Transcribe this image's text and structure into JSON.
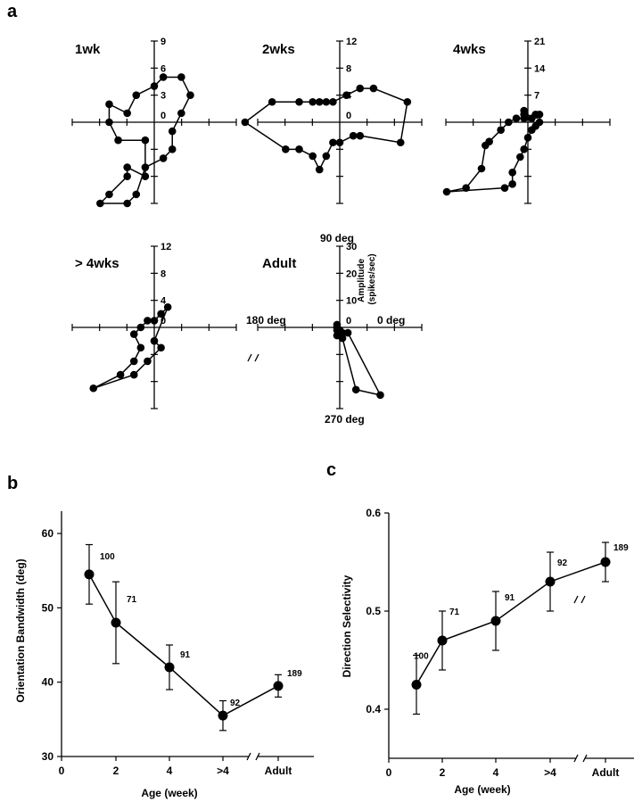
{
  "panel_labels": {
    "a": "a",
    "b": "b",
    "c": "c"
  },
  "chart_data": [
    {
      "type": "scatter",
      "subtype": "polar-direction-tuning",
      "title": "1wk",
      "angle_labels": [
        "",
        "",
        "",
        ""
      ],
      "radial_ticks": [
        3,
        6,
        9
      ],
      "zero_label": "0",
      "points": [
        [
          -6,
          -9
        ],
        [
          -5,
          -8
        ],
        [
          -3,
          -6
        ],
        [
          -3,
          -5
        ],
        [
          -1,
          -6
        ],
        [
          -1,
          -2
        ],
        [
          -4,
          -2
        ],
        [
          -5,
          0
        ],
        [
          -5,
          2
        ],
        [
          -3,
          1
        ],
        [
          -2,
          3
        ],
        [
          0,
          4
        ],
        [
          1,
          5
        ],
        [
          3,
          5
        ],
        [
          4,
          3
        ],
        [
          3,
          1
        ],
        [
          2,
          -1
        ],
        [
          2,
          -3
        ],
        [
          1,
          -4
        ],
        [
          -1,
          -5
        ],
        [
          -2,
          -8
        ],
        [
          -3,
          -9
        ],
        [
          -6,
          -9
        ]
      ]
    },
    {
      "type": "scatter",
      "subtype": "polar-direction-tuning",
      "title": "2wks",
      "angle_labels": [
        "",
        "",
        "",
        ""
      ],
      "radial_ticks": [
        4,
        8,
        12
      ],
      "zero_label": "0",
      "points": [
        [
          -14,
          0
        ],
        [
          -10,
          3
        ],
        [
          -6,
          3
        ],
        [
          -4,
          3
        ],
        [
          -3,
          3
        ],
        [
          -2,
          3
        ],
        [
          -1,
          3
        ],
        [
          1,
          4
        ],
        [
          3,
          5
        ],
        [
          5,
          5
        ],
        [
          10,
          3
        ],
        [
          9,
          -3
        ],
        [
          3,
          -2
        ],
        [
          2,
          -2
        ],
        [
          0,
          -3
        ],
        [
          -1,
          -3
        ],
        [
          -2,
          -5
        ],
        [
          -3,
          -7
        ],
        [
          -4,
          -5
        ],
        [
          -6,
          -4
        ],
        [
          -8,
          -4
        ],
        [
          -14,
          0
        ]
      ]
    },
    {
      "type": "scatter",
      "subtype": "polar-direction-tuning",
      "title": "4wks",
      "angle_labels": [
        "",
        "",
        "",
        ""
      ],
      "radial_ticks": [
        7,
        14,
        21
      ],
      "zero_label": "0",
      "points": [
        [
          -21,
          -18
        ],
        [
          -16,
          -17
        ],
        [
          -12,
          -12
        ],
        [
          -11,
          -6
        ],
        [
          -10,
          -5
        ],
        [
          -7,
          -2
        ],
        [
          -5,
          0
        ],
        [
          -3,
          1
        ],
        [
          -1,
          1
        ],
        [
          -1,
          2
        ],
        [
          -1,
          3
        ],
        [
          1,
          1
        ],
        [
          2,
          2
        ],
        [
          3,
          2
        ],
        [
          3,
          0
        ],
        [
          2,
          -1
        ],
        [
          1,
          -2
        ],
        [
          0,
          -4
        ],
        [
          -1,
          -7
        ],
        [
          -2,
          -9
        ],
        [
          -4,
          -13
        ],
        [
          -4,
          -16
        ],
        [
          -6,
          -17
        ],
        [
          -21,
          -18
        ]
      ]
    },
    {
      "type": "scatter",
      "subtype": "polar-direction-tuning",
      "title": "> 4wks",
      "angle_labels": [
        "",
        "",
        "",
        ""
      ],
      "radial_ticks": [
        4,
        8,
        12
      ],
      "zero_label": "0",
      "points": [
        [
          -9,
          -9
        ],
        [
          -5,
          -7
        ],
        [
          -3,
          -5
        ],
        [
          -2,
          -3
        ],
        [
          -3,
          -1
        ],
        [
          -2,
          0
        ],
        [
          -1,
          1
        ],
        [
          0,
          1
        ],
        [
          1,
          2
        ],
        [
          2,
          3
        ],
        [
          0,
          -2
        ],
        [
          1,
          -3
        ],
        [
          -1,
          -5
        ],
        [
          -3,
          -7
        ],
        [
          -9,
          -9
        ]
      ]
    },
    {
      "type": "scatter",
      "subtype": "polar-direction-tuning",
      "title": "Adult",
      "angle_labels": [
        "90 deg",
        "180 deg",
        "0 deg",
        "270 deg"
      ],
      "radial_ticks": [
        10,
        20,
        30
      ],
      "zero_label": "0",
      "ylabel": "Amplitude (spikes/sec)",
      "points": [
        [
          15,
          -25
        ],
        [
          6,
          -23
        ],
        [
          1,
          -4
        ],
        [
          0,
          -3
        ],
        [
          -1,
          -3
        ],
        [
          -1,
          -1
        ],
        [
          -1,
          0
        ],
        [
          -1,
          1
        ],
        [
          0,
          -1
        ],
        [
          1,
          -2
        ],
        [
          3,
          -2
        ],
        [
          15,
          -25
        ]
      ]
    },
    {
      "type": "line",
      "categories": [
        "1",
        "2",
        "4",
        ">4",
        "Adult"
      ],
      "values": [
        54.5,
        48,
        42,
        35.5,
        39.5
      ],
      "error_upper": [
        4,
        5.5,
        3,
        2,
        1.5
      ],
      "error_lower": [
        4,
        5.5,
        3,
        2,
        1.5
      ],
      "data_labels": [
        "100",
        "71",
        "91",
        "92",
        "189"
      ],
      "xlabel": "Age (week)",
      "ylabel": "Orientation Bandwidth (deg)",
      "x_ticks": [
        "0",
        "2",
        "4",
        ">4",
        "Adult"
      ],
      "y_ticks": [
        "30",
        "40",
        "50",
        "60"
      ],
      "ylim": [
        30,
        63
      ]
    },
    {
      "type": "line",
      "categories": [
        "1",
        "2",
        "4",
        ">4",
        "Adult"
      ],
      "values": [
        0.425,
        0.47,
        0.49,
        0.53,
        0.55
      ],
      "error_upper": [
        0.03,
        0.03,
        0.03,
        0.03,
        0.02
      ],
      "error_lower": [
        0.03,
        0.03,
        0.03,
        0.03,
        0.02
      ],
      "data_labels": [
        "100",
        "71",
        "91",
        "92",
        "189"
      ],
      "xlabel": "Age (week)",
      "ylabel": "Direction Selectivity",
      "x_ticks": [
        "0",
        "2",
        "4",
        ">4",
        "Adult"
      ],
      "y_ticks": [
        "0.4",
        "0.5",
        "0.6"
      ],
      "ylim": [
        0.35,
        0.6
      ]
    }
  ]
}
